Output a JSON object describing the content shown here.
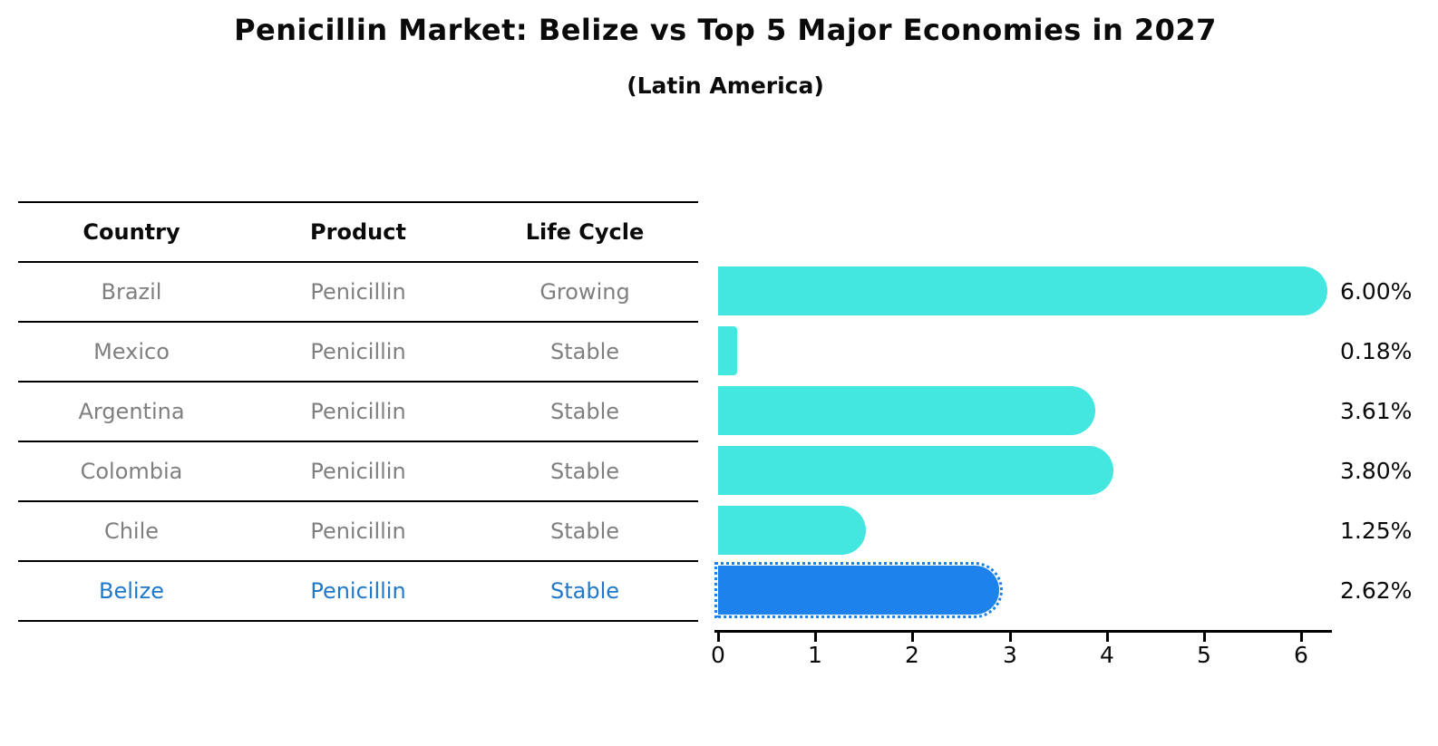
{
  "title": "Penicillin Market: Belize vs Top 5 Major Economies in 2027",
  "subtitle": "(Latin America)",
  "table": {
    "headers": [
      "Country",
      "Product",
      "Life Cycle"
    ],
    "rows": [
      {
        "country": "Brazil",
        "product": "Penicillin",
        "life_cycle": "Growing",
        "highlighted": false
      },
      {
        "country": "Mexico",
        "product": "Penicillin",
        "life_cycle": "Stable",
        "highlighted": false
      },
      {
        "country": "Argentina",
        "product": "Penicillin",
        "life_cycle": "Stable",
        "highlighted": false
      },
      {
        "country": "Colombia",
        "product": "Penicillin",
        "life_cycle": "Stable",
        "highlighted": false
      },
      {
        "country": "Chile",
        "product": "Penicillin",
        "life_cycle": "Stable",
        "highlighted": false
      },
      {
        "country": "Belize",
        "product": "Penicillin",
        "life_cycle": "Stable",
        "highlighted": true
      }
    ]
  },
  "chart_data": {
    "type": "bar",
    "orientation": "horizontal",
    "title": "Penicillin Market: Belize vs Top 5 Major Economies in 2027",
    "subtitle": "(Latin America)",
    "categories": [
      "Brazil",
      "Mexico",
      "Argentina",
      "Colombia",
      "Chile",
      "Belize"
    ],
    "values": [
      6.0,
      0.18,
      3.61,
      3.8,
      1.25,
      2.62
    ],
    "value_labels": [
      "6.00%",
      "0.18%",
      "3.61%",
      "3.80%",
      "1.25%",
      "2.62%"
    ],
    "x_ticks": [
      "0",
      "1",
      "2",
      "3",
      "4",
      "5",
      "6"
    ],
    "xlim": [
      0,
      6.3
    ],
    "grid": false,
    "legend": false,
    "highlight_category": "Belize",
    "bar_color": "#44E7E0",
    "highlight_color": "#1E82ED",
    "highlight_text_color": "#1F78C9",
    "row_text_color": "#7F7F7F",
    "axis_color": "#000000"
  }
}
